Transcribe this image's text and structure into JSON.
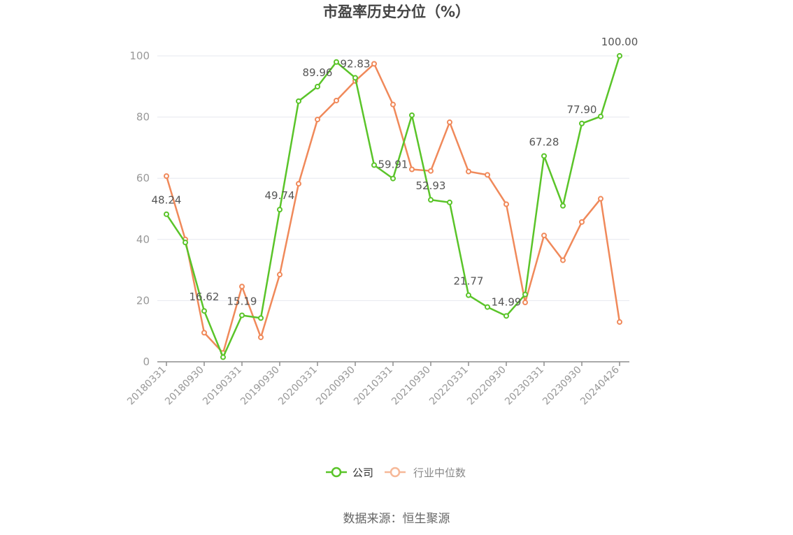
{
  "chart_data": {
    "type": "line",
    "title": "市盈率历史分位（%）",
    "source": "数据来源：恒生聚源",
    "ylim": [
      0,
      100
    ],
    "y_ticks": [
      "0",
      "20",
      "40",
      "60",
      "80",
      "100"
    ],
    "x_tick_labels": [
      "20180331",
      "20180930",
      "20190331",
      "20190930",
      "20200331",
      "20200930",
      "20210331",
      "20210930",
      "20220331",
      "20220930",
      "20230331",
      "20230930",
      "20240426"
    ],
    "grid": true,
    "legend_position": "bottom-center",
    "x_count": 25,
    "series": [
      {
        "name": "公司",
        "color": "#5ac429",
        "values": [
          48.24,
          39.0,
          16.62,
          1.5,
          15.19,
          14.3,
          49.74,
          85.2,
          89.96,
          98.0,
          92.83,
          64.3,
          59.91,
          80.6,
          52.93,
          52.1,
          21.77,
          17.9,
          14.99,
          22.0,
          67.28,
          51.0,
          77.9,
          80.2,
          100.0
        ],
        "labels": {
          "0": "48.24",
          "2": "16.62",
          "4": "15.19",
          "6": "49.74",
          "8": "89.96",
          "10": "92.83",
          "12": "59.91",
          "14": "52.93",
          "16": "21.77",
          "18": "14.99",
          "20": "67.28",
          "22": "77.90",
          "24": "100.00"
        }
      },
      {
        "name": "行业中位数",
        "color": "#f0895a",
        "values": [
          60.7,
          40.0,
          9.5,
          2.9,
          24.6,
          8.0,
          28.5,
          58.2,
          79.2,
          85.4,
          91.8,
          97.4,
          84.1,
          62.9,
          62.4,
          78.3,
          62.2,
          61.1,
          51.5,
          19.4,
          41.3,
          33.2,
          45.7,
          53.3,
          13.0
        ],
        "labels": {}
      }
    ]
  }
}
